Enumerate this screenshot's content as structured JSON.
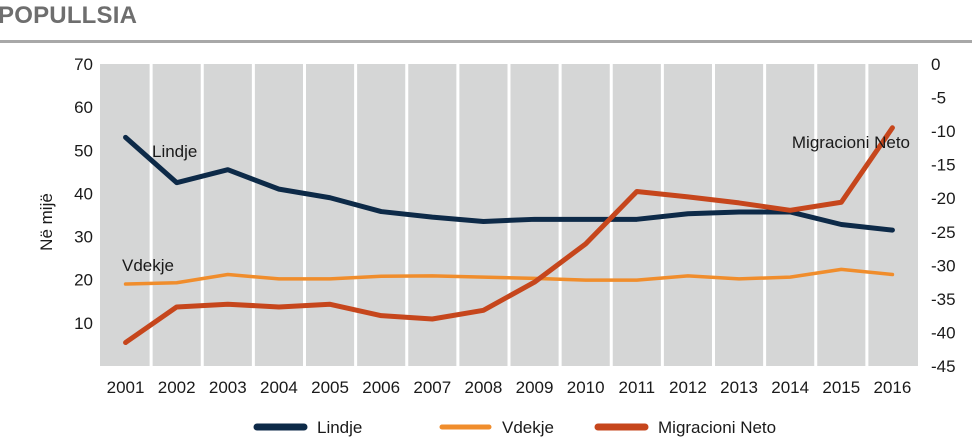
{
  "page": {
    "title": "POPULLSIA"
  },
  "chart_data": {
    "type": "line",
    "categories": [
      "2001",
      "2002",
      "2003",
      "2004",
      "2005",
      "2006",
      "2007",
      "2008",
      "2009",
      "2010",
      "2011",
      "2012",
      "2013",
      "2014",
      "2015",
      "2016"
    ],
    "ylabel": "Në mijë",
    "ylim": [
      0,
      70
    ],
    "y_ticks": [
      "70",
      "60",
      "50",
      "40",
      "30",
      "20",
      "10"
    ],
    "y2lim": [
      -45,
      0
    ],
    "y2_ticks": [
      "0",
      "-5",
      "-10",
      "-15",
      "-20",
      "-25",
      "-30",
      "-35",
      "-40",
      "-45"
    ],
    "grid": "vertical",
    "legend_position": "bottom",
    "series": [
      {
        "name": "Lindje",
        "axis": "left",
        "color": "#0d2a48",
        "values": [
          53.0,
          42.5,
          45.5,
          41.0,
          39.0,
          35.8,
          34.5,
          33.5,
          34.0,
          34.0,
          34.0,
          35.3,
          35.7,
          35.7,
          32.8,
          31.5
        ]
      },
      {
        "name": "Vdekje",
        "axis": "left",
        "color": "#f08d2c",
        "values": [
          19.0,
          19.3,
          21.2,
          20.2,
          20.2,
          20.8,
          20.9,
          20.6,
          20.3,
          19.9,
          19.9,
          20.9,
          20.2,
          20.6,
          22.4,
          21.2
        ]
      },
      {
        "name": "Migracioni Neto",
        "axis": "right",
        "color": "#c6461c",
        "values": [
          -41.5,
          -36.2,
          -35.8,
          -36.2,
          -35.8,
          -37.5,
          -38.0,
          -36.7,
          -32.5,
          -26.8,
          -19.0,
          -19.8,
          -20.7,
          -21.8,
          -20.6,
          -9.5
        ]
      }
    ],
    "annotations": [
      {
        "text": "Lindje",
        "series": "Lindje"
      },
      {
        "text": "Vdekje",
        "series": "Vdekje"
      },
      {
        "text": "Migracioni Neto",
        "series": "Migracioni Neto"
      }
    ],
    "legend": [
      "Lindje",
      "Vdekje",
      "Migracioni Neto"
    ]
  }
}
